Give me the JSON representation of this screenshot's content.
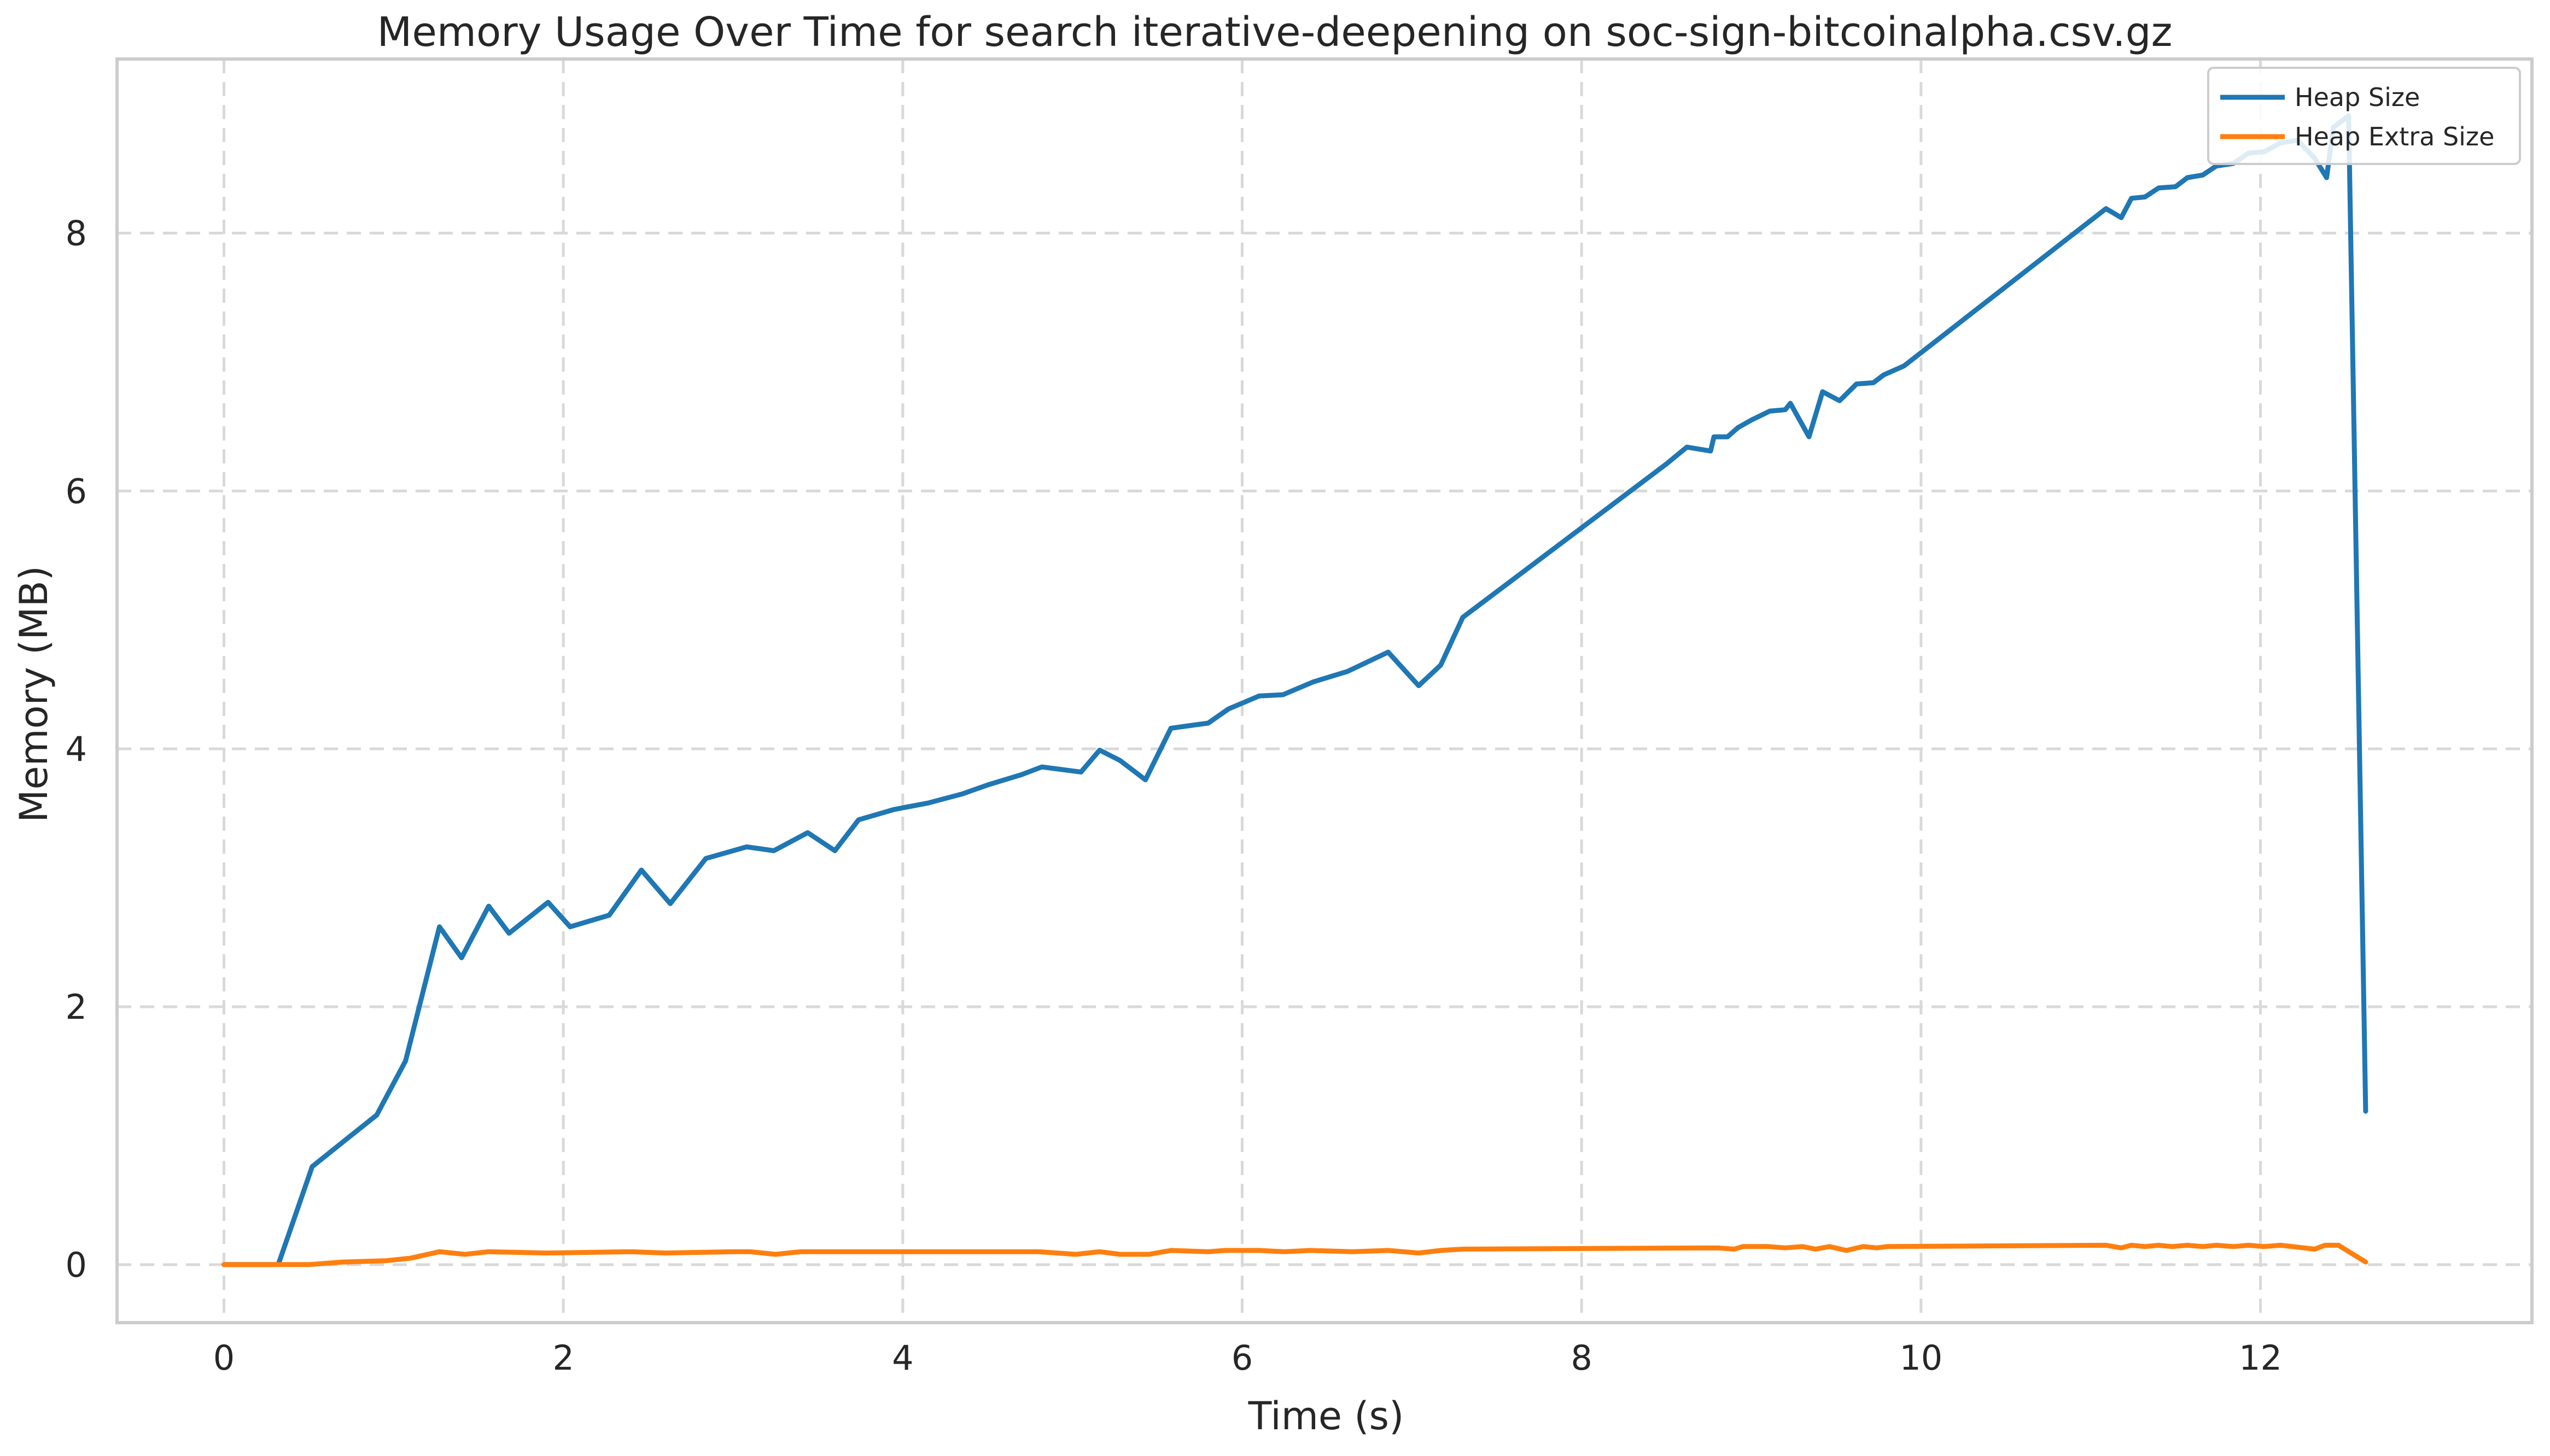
{
  "chart_data": {
    "type": "line",
    "title": "Memory Usage Over Time for search iterative-deepening on soc-sign-bitcoinalpha.csv.gz",
    "xlabel": "Time (s)",
    "ylabel": "Memory (MB)",
    "xlim": [
      -0.63,
      13.6
    ],
    "ylim": [
      -0.45,
      9.35
    ],
    "xticks": [
      0,
      2,
      4,
      6,
      8,
      10,
      12
    ],
    "yticks": [
      0,
      2,
      4,
      6,
      8
    ],
    "grid": true,
    "legend_position": "top-right",
    "series": [
      {
        "name": "Heap Size",
        "color": "#1f77b4",
        "points": [
          [
            0.0,
            0.0
          ],
          [
            0.32,
            0.0
          ],
          [
            0.52,
            0.76
          ],
          [
            0.7,
            0.95
          ],
          [
            0.9,
            1.16
          ],
          [
            1.07,
            1.58
          ],
          [
            1.27,
            2.62
          ],
          [
            1.4,
            2.38
          ],
          [
            1.56,
            2.78
          ],
          [
            1.68,
            2.57
          ],
          [
            1.91,
            2.81
          ],
          [
            2.04,
            2.62
          ],
          [
            2.27,
            2.71
          ],
          [
            2.46,
            3.06
          ],
          [
            2.63,
            2.8
          ],
          [
            2.84,
            3.15
          ],
          [
            3.08,
            3.24
          ],
          [
            3.24,
            3.21
          ],
          [
            3.44,
            3.35
          ],
          [
            3.6,
            3.21
          ],
          [
            3.74,
            3.45
          ],
          [
            3.95,
            3.53
          ],
          [
            4.15,
            3.58
          ],
          [
            4.35,
            3.65
          ],
          [
            4.5,
            3.72
          ],
          [
            4.7,
            3.8
          ],
          [
            4.82,
            3.86
          ],
          [
            5.05,
            3.82
          ],
          [
            5.16,
            3.99
          ],
          [
            5.28,
            3.91
          ],
          [
            5.43,
            3.76
          ],
          [
            5.58,
            4.16
          ],
          [
            5.8,
            4.2
          ],
          [
            5.92,
            4.31
          ],
          [
            6.1,
            4.41
          ],
          [
            6.24,
            4.42
          ],
          [
            6.42,
            4.52
          ],
          [
            6.62,
            4.6
          ],
          [
            6.86,
            4.75
          ],
          [
            7.04,
            4.49
          ],
          [
            7.17,
            4.65
          ],
          [
            7.3,
            5.02
          ],
          [
            8.5,
            6.21
          ],
          [
            8.62,
            6.34
          ],
          [
            8.76,
            6.31
          ],
          [
            8.78,
            6.42
          ],
          [
            8.86,
            6.42
          ],
          [
            8.92,
            6.49
          ],
          [
            9.0,
            6.55
          ],
          [
            9.11,
            6.62
          ],
          [
            9.2,
            6.63
          ],
          [
            9.23,
            6.68
          ],
          [
            9.34,
            6.42
          ],
          [
            9.42,
            6.77
          ],
          [
            9.52,
            6.7
          ],
          [
            9.62,
            6.83
          ],
          [
            9.72,
            6.84
          ],
          [
            9.78,
            6.9
          ],
          [
            9.9,
            6.97
          ],
          [
            11.09,
            8.19
          ],
          [
            11.18,
            8.12
          ],
          [
            11.24,
            8.27
          ],
          [
            11.32,
            8.28
          ],
          [
            11.4,
            8.35
          ],
          [
            11.5,
            8.36
          ],
          [
            11.57,
            8.43
          ],
          [
            11.66,
            8.45
          ],
          [
            11.74,
            8.52
          ],
          [
            11.84,
            8.54
          ],
          [
            11.93,
            8.62
          ],
          [
            12.02,
            8.63
          ],
          [
            12.12,
            8.7
          ],
          [
            12.22,
            8.72
          ],
          [
            12.32,
            8.58
          ],
          [
            12.39,
            8.43
          ],
          [
            12.43,
            8.82
          ],
          [
            12.52,
            8.91
          ],
          [
            12.62,
            1.19
          ]
        ]
      },
      {
        "name": "Heap Extra Size",
        "color": "#ff7f0e",
        "points": [
          [
            0.0,
            0.0
          ],
          [
            0.5,
            0.0
          ],
          [
            0.7,
            0.02
          ],
          [
            0.95,
            0.03
          ],
          [
            1.1,
            0.05
          ],
          [
            1.27,
            0.1
          ],
          [
            1.42,
            0.08
          ],
          [
            1.56,
            0.1
          ],
          [
            1.9,
            0.09
          ],
          [
            2.4,
            0.1
          ],
          [
            2.6,
            0.09
          ],
          [
            3.0,
            0.1
          ],
          [
            3.1,
            0.1
          ],
          [
            3.25,
            0.08
          ],
          [
            3.4,
            0.1
          ],
          [
            4.8,
            0.1
          ],
          [
            5.02,
            0.08
          ],
          [
            5.16,
            0.1
          ],
          [
            5.28,
            0.08
          ],
          [
            5.45,
            0.08
          ],
          [
            5.58,
            0.11
          ],
          [
            5.8,
            0.1
          ],
          [
            5.9,
            0.11
          ],
          [
            6.1,
            0.11
          ],
          [
            6.25,
            0.1
          ],
          [
            6.4,
            0.11
          ],
          [
            6.65,
            0.1
          ],
          [
            6.86,
            0.11
          ],
          [
            7.04,
            0.09
          ],
          [
            7.17,
            0.11
          ],
          [
            7.3,
            0.12
          ],
          [
            8.8,
            0.13
          ],
          [
            8.9,
            0.12
          ],
          [
            8.95,
            0.14
          ],
          [
            9.1,
            0.14
          ],
          [
            9.2,
            0.13
          ],
          [
            9.3,
            0.14
          ],
          [
            9.38,
            0.12
          ],
          [
            9.46,
            0.14
          ],
          [
            9.56,
            0.11
          ],
          [
            9.66,
            0.14
          ],
          [
            9.74,
            0.13
          ],
          [
            9.8,
            0.14
          ],
          [
            11.09,
            0.15
          ],
          [
            11.18,
            0.13
          ],
          [
            11.24,
            0.15
          ],
          [
            11.32,
            0.14
          ],
          [
            11.4,
            0.15
          ],
          [
            11.48,
            0.14
          ],
          [
            11.57,
            0.15
          ],
          [
            11.66,
            0.14
          ],
          [
            11.74,
            0.15
          ],
          [
            11.84,
            0.14
          ],
          [
            11.93,
            0.15
          ],
          [
            12.02,
            0.14
          ],
          [
            12.12,
            0.15
          ],
          [
            12.32,
            0.12
          ],
          [
            12.38,
            0.15
          ],
          [
            12.46,
            0.15
          ],
          [
            12.62,
            0.02
          ]
        ]
      }
    ]
  }
}
